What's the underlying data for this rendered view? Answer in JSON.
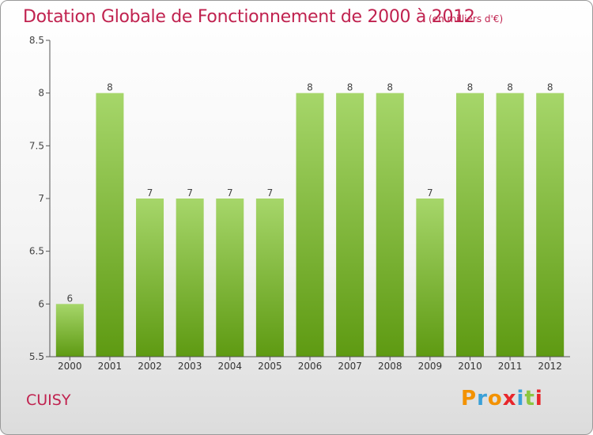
{
  "title": "Dotation Globale de Fonctionnement de 2000 à 2012",
  "subtitle": "(en milliers d'€)",
  "commune": "CUISY",
  "logo": {
    "letters": [
      "P",
      "r",
      "o",
      "x",
      "i",
      "t",
      "i"
    ],
    "colors": [
      "#f39200",
      "#3aa0d8",
      "#f39200",
      "#e8262b",
      "#3aa0d8",
      "#8cc63f",
      "#e8262b"
    ]
  },
  "colors": {
    "bar": "#7bbd28",
    "bar_light": "#a6d66a",
    "bar_dark": "#5e9a12",
    "text": "#c0224f",
    "axis": "#555555"
  },
  "chart_data": {
    "type": "bar",
    "title": "Dotation Globale de Fonctionnement de 2000 à 2012",
    "subtitle": "(en milliers d'€)",
    "categories": [
      "2000",
      "2001",
      "2002",
      "2003",
      "2004",
      "2005",
      "2006",
      "2007",
      "2008",
      "2009",
      "2010",
      "2011",
      "2012"
    ],
    "values": [
      6,
      8,
      7,
      7,
      7,
      7,
      8,
      8,
      8,
      7,
      8,
      8,
      8
    ],
    "data_labels": [
      "6",
      "8",
      "7",
      "7",
      "7",
      "7",
      "8",
      "8",
      "8",
      "7",
      "8",
      "8",
      "8"
    ],
    "ylim": [
      5.5,
      8.5
    ],
    "yticks": [
      5.5,
      6,
      6.5,
      7,
      7.5,
      8,
      8.5
    ],
    "ytick_labels": [
      "5.5",
      "6",
      "6.5",
      "7",
      "7.5",
      "8",
      "8.5"
    ],
    "xlabel": "",
    "ylabel": "",
    "grid": false,
    "legend": "none"
  }
}
